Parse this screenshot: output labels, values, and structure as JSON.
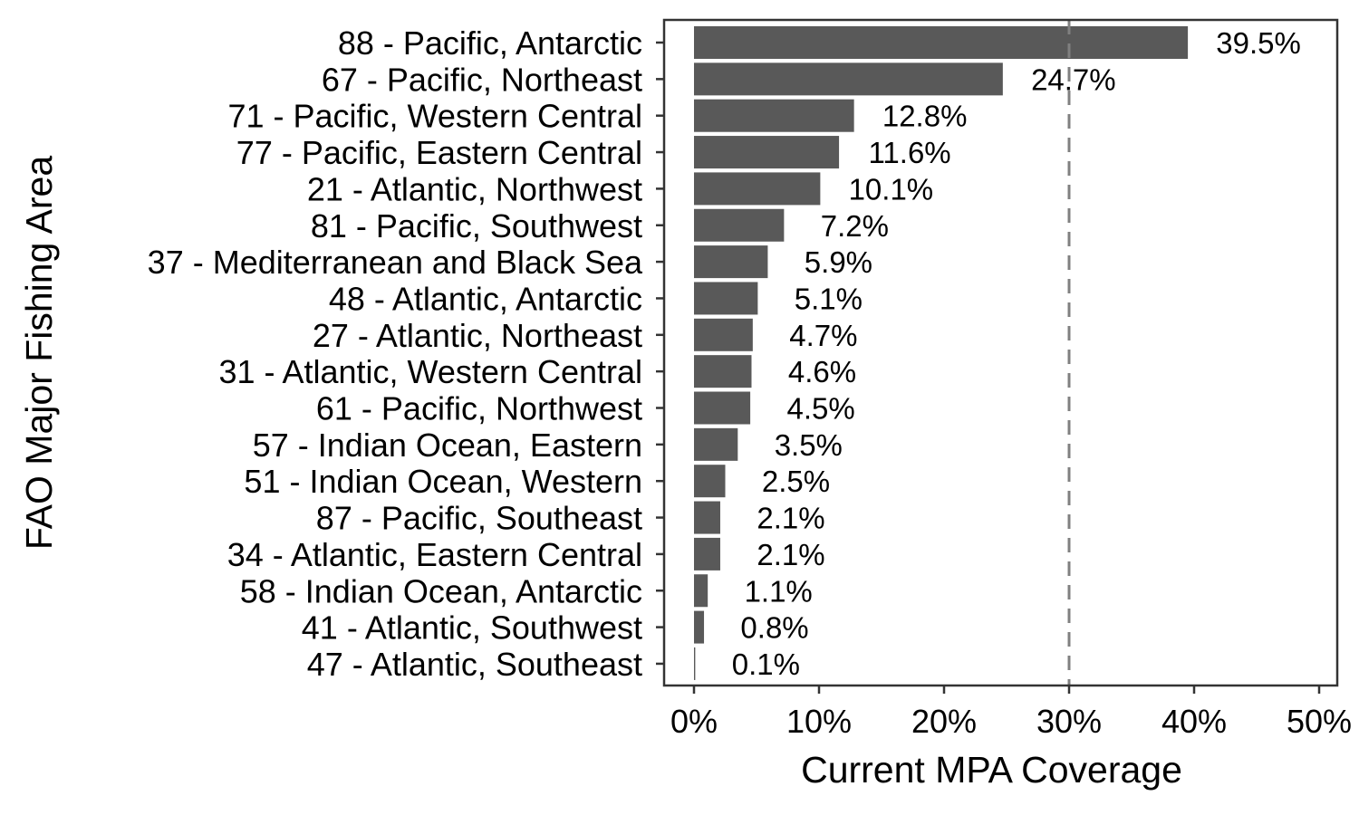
{
  "chart_data": {
    "type": "bar",
    "orientation": "horizontal",
    "xlabel": "Current MPA Coverage",
    "ylabel": "FAO Major Fishing Area",
    "xlim": [
      0,
      50
    ],
    "xticks": [
      0,
      10,
      20,
      30,
      40,
      50
    ],
    "xtick_labels": [
      "0%",
      "10%",
      "20%",
      "30%",
      "40%",
      "50%"
    ],
    "reference_line": {
      "x": 30,
      "style": "dashed",
      "color": "#808080"
    },
    "bar_color": "#595959",
    "grid": false,
    "categories": [
      "88 - Pacific, Antarctic",
      "67 - Pacific, Northeast",
      "71 - Pacific, Western Central",
      "77 - Pacific, Eastern Central",
      "21 - Atlantic, Northwest",
      "81 - Pacific, Southwest",
      "37 - Mediterranean and Black Sea",
      "48 - Atlantic, Antarctic",
      "27 - Atlantic, Northeast",
      "31 - Atlantic, Western Central",
      "61 - Pacific, Northwest",
      "57 - Indian Ocean, Eastern",
      "51 - Indian Ocean, Western",
      "87 - Pacific, Southeast",
      "34 - Atlantic, Eastern Central",
      "58 - Indian Ocean, Antarctic",
      "41 - Atlantic, Southwest",
      "47 - Atlantic, Southeast"
    ],
    "values": [
      39.5,
      24.7,
      12.8,
      11.6,
      10.1,
      7.2,
      5.9,
      5.1,
      4.7,
      4.6,
      4.5,
      3.5,
      2.5,
      2.1,
      2.1,
      1.1,
      0.8,
      0.1
    ],
    "value_labels": [
      "39.5%",
      "24.7%",
      "12.8%",
      "11.6%",
      "10.1%",
      "7.2%",
      "5.9%",
      "5.1%",
      "4.7%",
      "4.6%",
      "4.5%",
      "3.5%",
      "2.5%",
      "2.1%",
      "2.1%",
      "1.1%",
      "0.8%",
      "0.1%"
    ]
  }
}
